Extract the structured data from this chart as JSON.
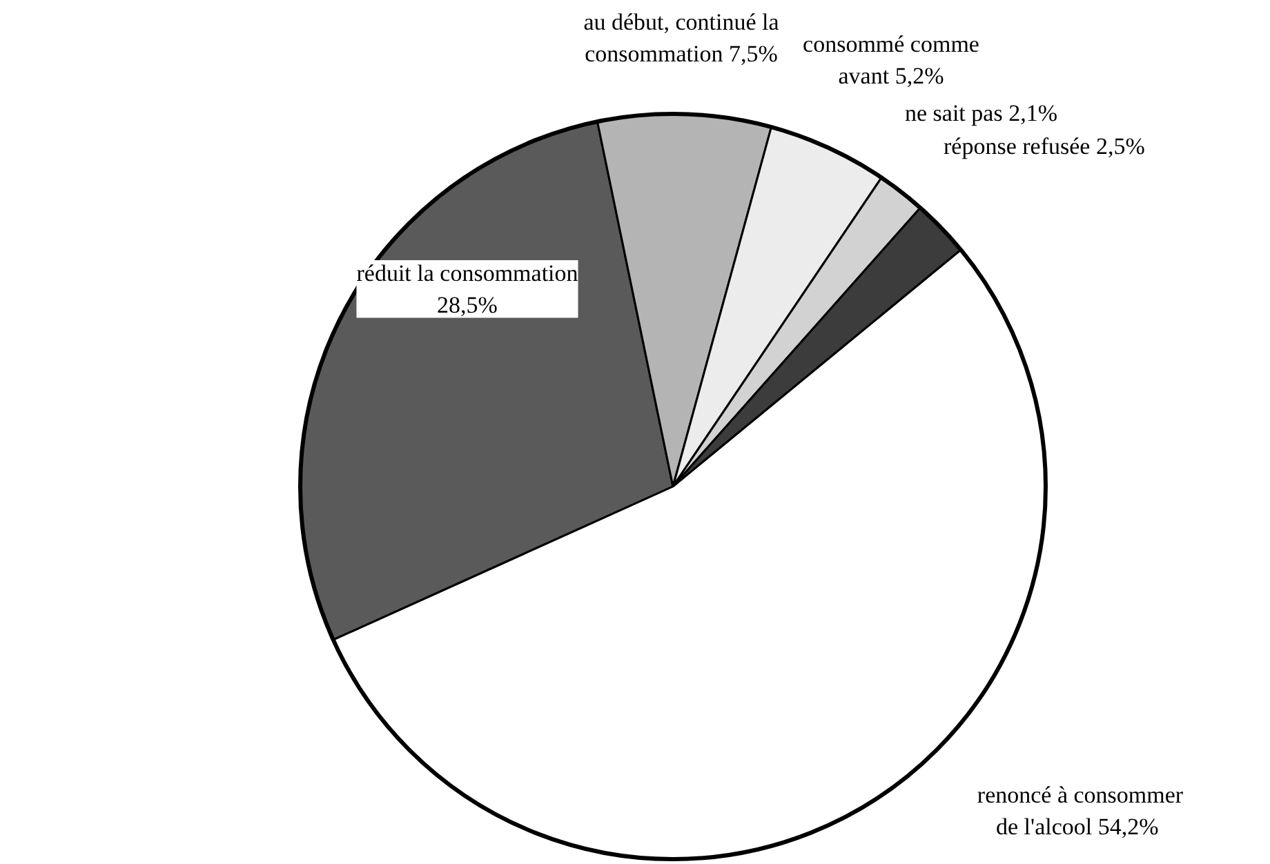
{
  "chart_data": {
    "type": "pie",
    "categories": [
      "réduit la consommation",
      "au début, continué la\nconsommation",
      "consommé comme\navant",
      "ne sait pas",
      "réponse refusée",
      "renoncé à consommer\nde l'alcool"
    ],
    "values": [
      28.5,
      7.5,
      5.2,
      2.1,
      2.5,
      54.2
    ],
    "value_labels": [
      "28,5%",
      "7,5%",
      "5,2%",
      "2,1%",
      "2,5%",
      "54,2%"
    ],
    "colors": [
      "#5a5a5a",
      "#b4b4b4",
      "#ececec",
      "#d2d2d2",
      "#3c3c3c",
      "#ffffff"
    ]
  }
}
